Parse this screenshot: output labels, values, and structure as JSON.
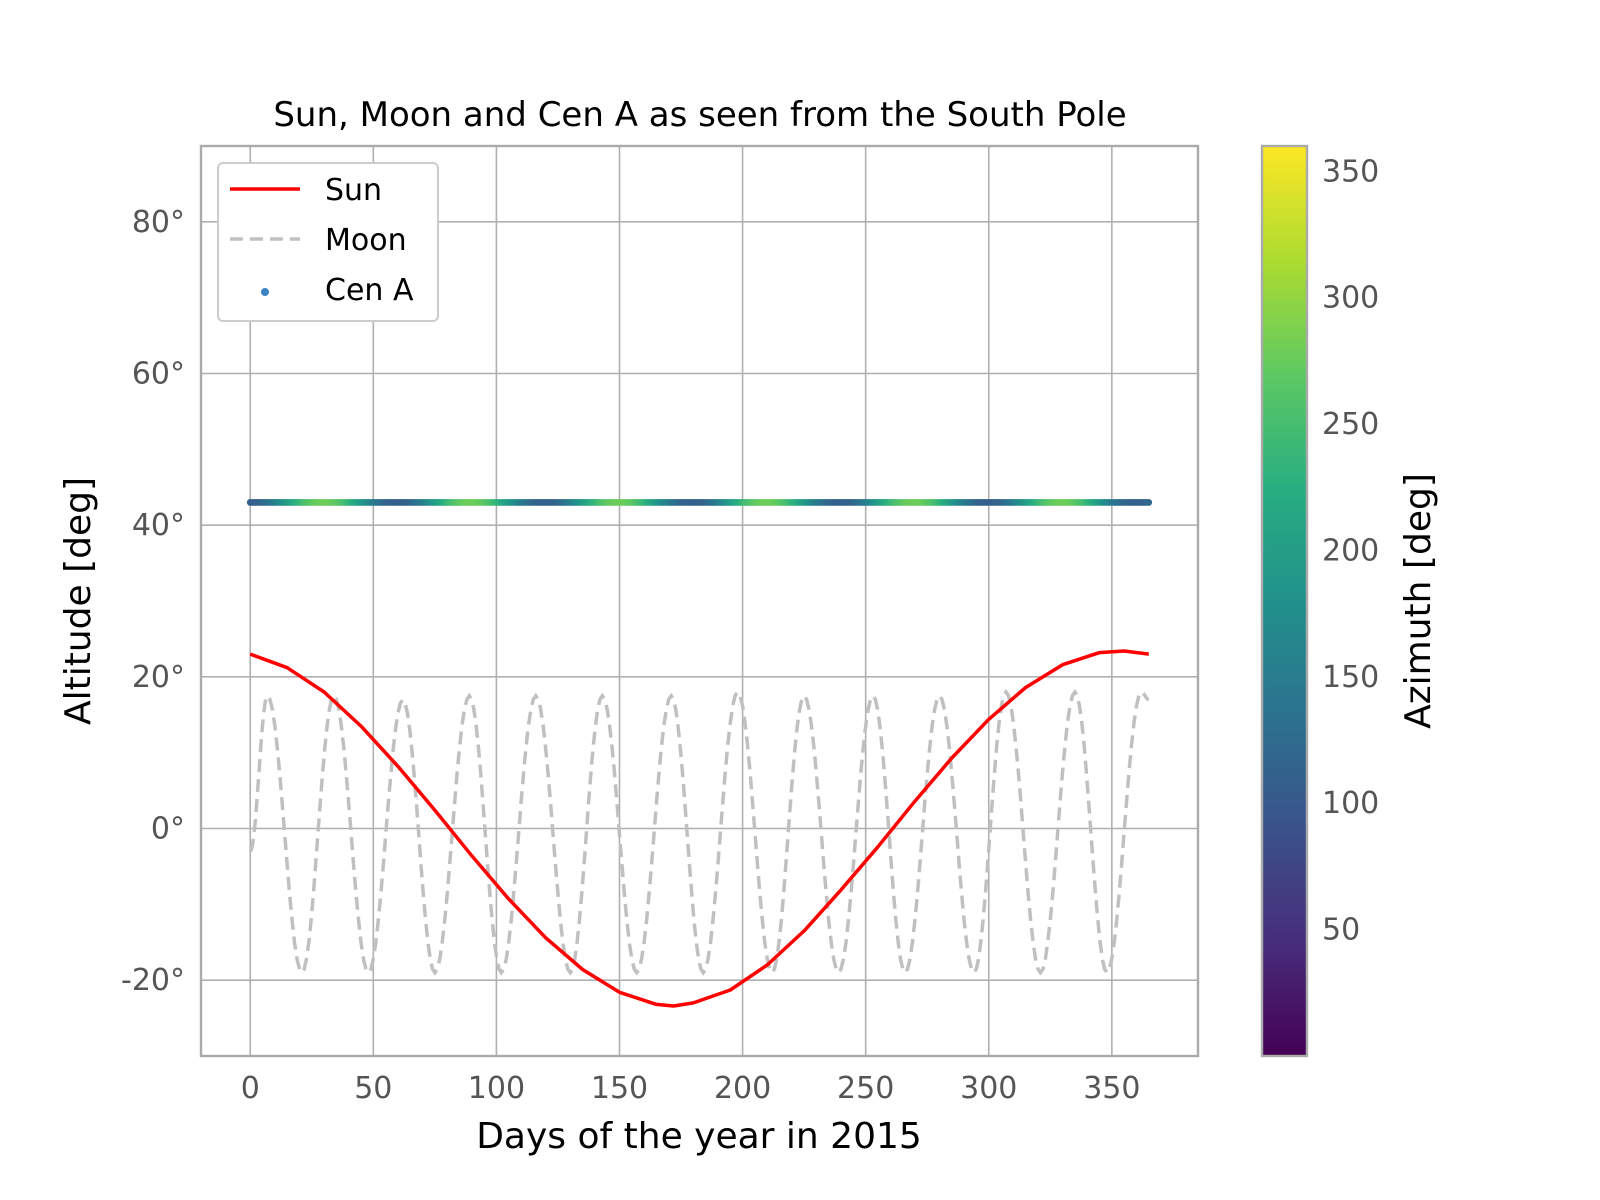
{
  "chart_data": {
    "type": "line",
    "title": "Sun, Moon and Cen A as seen from the South Pole",
    "xlabel": "Days of the year in 2015",
    "ylabel": "Altitude [deg]",
    "xlim": [
      -20,
      385
    ],
    "ylim": [
      -30,
      90
    ],
    "x_ticks": [
      0,
      50,
      100,
      150,
      200,
      250,
      300,
      350
    ],
    "x_tick_labels": [
      "0",
      "50",
      "100",
      "150",
      "200",
      "250",
      "300",
      "350"
    ],
    "y_ticks": [
      -20,
      0,
      20,
      40,
      60,
      80
    ],
    "y_tick_labels": [
      "-20°",
      "0°",
      "20°",
      "40°",
      "60°",
      "80°"
    ],
    "grid": true,
    "legend_position": "top-left",
    "series": [
      {
        "name": "Sun",
        "kind": "line",
        "color": "#ff0000",
        "style": "solid",
        "x": [
          0,
          15,
          30,
          45,
          60,
          75,
          90,
          105,
          120,
          135,
          150,
          165,
          172,
          180,
          195,
          210,
          225,
          240,
          255,
          270,
          285,
          300,
          315,
          330,
          345,
          355,
          365
        ],
        "y": [
          23.0,
          21.2,
          18.0,
          13.5,
          8.2,
          2.4,
          -3.6,
          -9.3,
          -14.4,
          -18.6,
          -21.6,
          -23.2,
          -23.4,
          -23.0,
          -21.3,
          -18.0,
          -13.5,
          -8.1,
          -2.4,
          3.6,
          9.3,
          14.4,
          18.6,
          21.6,
          23.2,
          23.4,
          23.0
        ]
      },
      {
        "name": "Moon",
        "kind": "line",
        "color": "#c0c0c0",
        "style": "dashed",
        "period_days": 27.32,
        "amplitude": 18.5,
        "x": [
          0,
          7,
          21,
          34,
          48,
          62,
          75,
          89,
          102,
          116,
          130,
          143,
          157,
          171,
          184,
          198,
          212,
          225,
          239,
          253,
          266,
          280,
          294,
          307,
          321,
          335,
          348,
          362,
          365
        ],
        "y": [
          -3.0,
          17.5,
          -19.0,
          17.5,
          -19.0,
          17.0,
          -19.0,
          17.5,
          -19.0,
          17.5,
          -19.0,
          17.5,
          -19.0,
          17.5,
          -19.0,
          18.0,
          -19.0,
          17.5,
          -19.0,
          17.5,
          -19.0,
          17.5,
          -19.0,
          18.0,
          -19.0,
          18.0,
          -19.0,
          18.0,
          17.0
        ]
      },
      {
        "name": "Cen A",
        "kind": "scatter",
        "color": "#3b84c4",
        "altitude": 43.0,
        "x_range": [
          0,
          365
        ],
        "colormap": "viridis",
        "azimuth_cycle_days": 60
      }
    ],
    "colorbar": {
      "label": "Azimuth [deg]",
      "colormap": "viridis",
      "range": [
        0,
        360
      ],
      "ticks": [
        50,
        100,
        150,
        200,
        250,
        300,
        350
      ],
      "tick_labels": [
        "50",
        "100",
        "150",
        "200",
        "250",
        "300",
        "350"
      ]
    }
  }
}
